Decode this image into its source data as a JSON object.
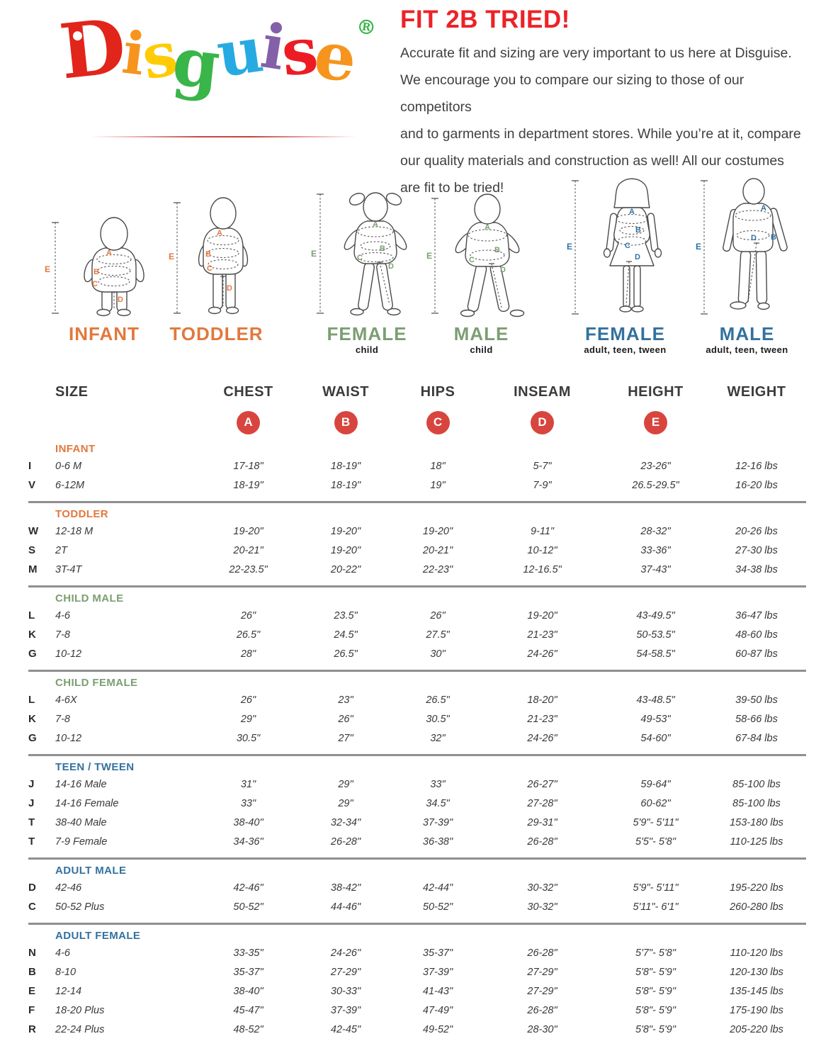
{
  "header": {
    "title": "FIT 2B TRIED!",
    "intro": "Accurate fit and sizing are very important to us here at Disguise.\nWe encourage you to compare our sizing to those of our competitors\nand to garments in department stores. While you’re at it, compare\nour quality materials and construction as well! All our costumes\nare fit to be tried!"
  },
  "logo": {
    "letters": [
      {
        "char": "D",
        "color": "#e1251b"
      },
      {
        "char": "i",
        "color": "#f7941d"
      },
      {
        "char": "s",
        "color": "#ffcb05"
      },
      {
        "char": "g",
        "color": "#39b54a"
      },
      {
        "char": "u",
        "color": "#27aae1"
      },
      {
        "char": "i",
        "color": "#8460a8"
      },
      {
        "char": "s",
        "color": "#ed1c24"
      },
      {
        "char": "e",
        "color": "#f7941d"
      }
    ],
    "registered": "®",
    "registered_color": "#39b54a"
  },
  "colors": {
    "title_red": "#ec2227",
    "orange": "#e2783c",
    "green": "#7c9e72",
    "blue": "#33719f",
    "circle_red": "#d8453e",
    "separator_gray": "#8f8f8f"
  },
  "measure_letters": [
    "A",
    "B",
    "C",
    "D",
    "E"
  ],
  "figures": [
    {
      "id": "infant",
      "label": "INFANT",
      "sublabel": "",
      "color": "#e2783c"
    },
    {
      "id": "toddler",
      "label": "TODDLER",
      "sublabel": "",
      "color": "#e2783c"
    },
    {
      "id": "child-female",
      "label": "FEMALE",
      "sublabel": "child",
      "color": "#7c9e72"
    },
    {
      "id": "child-male",
      "label": "MALE",
      "sublabel": "child",
      "color": "#7c9e72"
    },
    {
      "id": "adult-female",
      "label": "FEMALE",
      "sublabel": "adult, teen, tween",
      "color": "#33719f"
    },
    {
      "id": "adult-male",
      "label": "MALE",
      "sublabel": "adult, teen, tween",
      "color": "#33719f"
    }
  ],
  "table": {
    "columns": [
      "SIZE",
      "CHEST",
      "WAIST",
      "HIPS",
      "INSEAM",
      "HEIGHT",
      "WEIGHT"
    ],
    "sections": [
      {
        "id": "infant",
        "name": "INFANT",
        "color": "#e2783c",
        "rows": [
          [
            "I",
            "0-6 M",
            "17-18\"",
            "18-19\"",
            "18\"",
            "5-7\"",
            "23-26\"",
            "12-16 lbs"
          ],
          [
            "V",
            "6-12M",
            "18-19\"",
            "18-19\"",
            "19\"",
            "7-9\"",
            "26.5-29.5\"",
            "16-20 lbs"
          ]
        ]
      },
      {
        "id": "toddler",
        "name": "TODDLER",
        "color": "#e2783c",
        "rows": [
          [
            "W",
            "12-18 M",
            "19-20\"",
            "19-20\"",
            "19-20\"",
            "9-11\"",
            "28-32\"",
            "20-26 lbs"
          ],
          [
            "S",
            "2T",
            "20-21\"",
            "19-20\"",
            "20-21\"",
            "10-12\"",
            "33-36\"",
            "27-30 lbs"
          ],
          [
            "M",
            "3T-4T",
            "22-23.5\"",
            "20-22\"",
            "22-23\"",
            "12-16.5\"",
            "37-43\"",
            "34-38 lbs"
          ]
        ]
      },
      {
        "id": "child-male",
        "name": "CHILD MALE",
        "color": "#7c9e72",
        "rows": [
          [
            "L",
            "4-6",
            "26\"",
            "23.5\"",
            "26\"",
            "19-20\"",
            "43-49.5\"",
            "36-47 lbs"
          ],
          [
            "K",
            "7-8",
            "26.5\"",
            "24.5\"",
            "27.5\"",
            "21-23\"",
            "50-53.5\"",
            "48-60 lbs"
          ],
          [
            "G",
            "10-12",
            "28\"",
            "26.5\"",
            "30\"",
            "24-26\"",
            "54-58.5\"",
            "60-87 lbs"
          ]
        ]
      },
      {
        "id": "child-female",
        "name": "CHILD FEMALE",
        "color": "#7c9e72",
        "rows": [
          [
            "L",
            "4-6X",
            "26\"",
            "23\"",
            "26.5\"",
            "18-20\"",
            "43-48.5\"",
            "39-50 lbs"
          ],
          [
            "K",
            "7-8",
            "29\"",
            "26\"",
            "30.5\"",
            "21-23\"",
            "49-53\"",
            "58-66 lbs"
          ],
          [
            "G",
            "10-12",
            "30.5\"",
            "27\"",
            "32\"",
            "24-26\"",
            "54-60\"",
            "67-84 lbs"
          ]
        ]
      },
      {
        "id": "teen-tween",
        "name": "TEEN / TWEEN",
        "color": "#33719f",
        "rows": [
          [
            "J",
            "14-16 Male",
            "31\"",
            "29\"",
            "33\"",
            "26-27\"",
            "59-64\"",
            "85-100 lbs"
          ],
          [
            "J",
            "14-16 Female",
            "33\"",
            "29\"",
            "34.5\"",
            "27-28\"",
            "60-62\"",
            "85-100 lbs"
          ],
          [
            "T",
            "38-40 Male",
            "38-40\"",
            "32-34\"",
            "37-39\"",
            "29-31\"",
            "5'9\"- 5'11\"",
            "153-180 lbs"
          ],
          [
            "T",
            "7-9 Female",
            "34-36\"",
            "26-28\"",
            "36-38\"",
            "26-28\"",
            "5'5\"- 5'8\"",
            "110-125 lbs"
          ]
        ]
      },
      {
        "id": "adult-male",
        "name": "ADULT MALE",
        "color": "#33719f",
        "rows": [
          [
            "D",
            "42-46",
            "42-46\"",
            "38-42\"",
            "42-44\"",
            "30-32\"",
            "5'9\"- 5'11\"",
            "195-220 lbs"
          ],
          [
            "C",
            "50-52 Plus",
            "50-52\"",
            "44-46\"",
            "50-52\"",
            "30-32\"",
            "5'11\"- 6'1\"",
            "260-280 lbs"
          ]
        ]
      },
      {
        "id": "adult-female",
        "name": "ADULT FEMALE",
        "color": "#33719f",
        "rows": [
          [
            "N",
            "4-6",
            "33-35\"",
            "24-26\"",
            "35-37\"",
            "26-28\"",
            "5'7\"- 5'8\"",
            "110-120 lbs"
          ],
          [
            "B",
            "8-10",
            "35-37\"",
            "27-29\"",
            "37-39\"",
            "27-29\"",
            "5'8\"- 5'9\"",
            "120-130 lbs"
          ],
          [
            "E",
            "12-14",
            "38-40\"",
            "30-33\"",
            "41-43\"",
            "27-29\"",
            "5'8\"- 5'9\"",
            "135-145 lbs"
          ],
          [
            "F",
            "18-20 Plus",
            "45-47\"",
            "37-39\"",
            "47-49\"",
            "26-28\"",
            "5'8\"- 5'9\"",
            "175-190 lbs"
          ],
          [
            "R",
            "22-24 Plus",
            "48-52\"",
            "42-45\"",
            "49-52\"",
            "28-30\"",
            "5'8\"- 5'9\"",
            "205-220 lbs"
          ]
        ]
      }
    ]
  }
}
